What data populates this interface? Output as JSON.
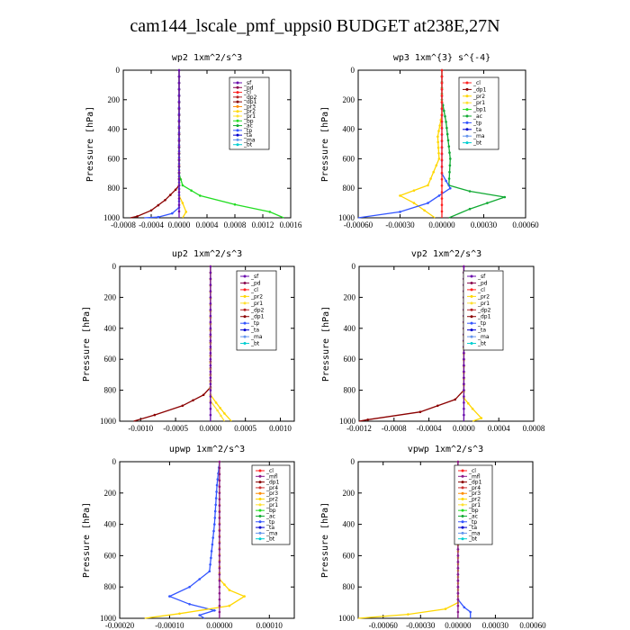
{
  "figure": {
    "title": "cam144_lscale_pmf_uppsi0  BUDGET at238E,27N"
  },
  "colors": {
    "_sf": "#6a0dad",
    "_pd": "#8b0a50",
    "_cl": "#ff2020",
    "_dp2": "#b22222",
    "_dp1": "#8b0000",
    "_pr3": "#ff8c00",
    "_pr2": "#ffd700",
    "_pr1": "#ffe030",
    "_bp": "#22dd22",
    "_bp1": "#22dd22",
    "_ac": "#11aa33",
    "_tp": "#3355ff",
    "_ta": "#0000cd",
    "_ma": "#6495ed",
    "_bt": "#00ced1",
    "_mfl": "#8b1a8b",
    "_pr4": "#cc3333"
  },
  "chart_data": [
    {
      "type": "line",
      "title": "wp2  1xm^2/s^3",
      "ylabel": "Pressure [hPa]",
      "ylim": [
        1000,
        0
      ],
      "xlim": [
        -0.0008,
        0.0016
      ],
      "xticks": [
        "-0.0008",
        "-0.0004",
        "0.0000",
        "0.0004",
        "0.0008",
        "0.0012",
        "0.0016"
      ],
      "xtickvals": [
        -0.0008,
        -0.0004,
        0,
        0.0004,
        0.0008,
        0.0012,
        0.0016
      ],
      "yticks": [
        0,
        200,
        400,
        600,
        800,
        1000
      ],
      "legend": [
        "_sf",
        "_pd",
        "_cl",
        "_dp2",
        "_dp1",
        "_pr3",
        "_pr2",
        "_pr1",
        "_bp",
        "_ac",
        "_tp",
        "_ta",
        "_ma",
        "_bt"
      ],
      "series": [
        {
          "name": "_bp",
          "points": [
            [
              0,
              0
            ],
            [
              0,
              700
            ],
            [
              5e-05,
              780
            ],
            [
              0.0003,
              850
            ],
            [
              0.0008,
              910
            ],
            [
              0.0013,
              960
            ],
            [
              0.0015,
              1000
            ]
          ]
        },
        {
          "name": "_dp1",
          "points": [
            [
              0,
              0
            ],
            [
              0,
              780
            ],
            [
              -5e-05,
              810
            ],
            [
              -0.0002,
              880
            ],
            [
              -0.0004,
              950
            ],
            [
              -0.0006,
              990
            ],
            [
              -0.0007,
              1000
            ]
          ]
        },
        {
          "name": "_pr2",
          "points": [
            [
              0,
              0
            ],
            [
              0,
              850
            ],
            [
              5e-05,
              900
            ],
            [
              0.0001,
              960
            ],
            [
              5e-05,
              1000
            ]
          ]
        },
        {
          "name": "_tp",
          "points": [
            [
              0,
              0
            ],
            [
              0,
              930
            ],
            [
              -0.0001,
              970
            ],
            [
              -0.0003,
              995
            ],
            [
              -0.0005,
              1000
            ]
          ]
        },
        {
          "name": "_sf",
          "points": [
            [
              0,
              0
            ],
            [
              0,
              1000
            ]
          ]
        }
      ]
    },
    {
      "type": "line",
      "title": "wp3  1xm^{3} s^{-4}",
      "ylabel": "Pressure [hPa]",
      "ylim": [
        1000,
        0
      ],
      "xlim": [
        -0.0006,
        0.0006
      ],
      "xticks": [
        "-0.00060",
        "-0.00030",
        "0.00000",
        "0.00030",
        "0.00060"
      ],
      "xtickvals": [
        -0.0006,
        -0.0003,
        0,
        0.0003,
        0.0006
      ],
      "yticks": [
        0,
        200,
        400,
        600,
        800,
        1000
      ],
      "legend": [
        "_cl",
        "_dp1",
        "_pr2",
        "_pr1",
        "_bp1",
        "_ac",
        "_tp",
        "_ta",
        "_ma",
        "_bt"
      ],
      "series": [
        {
          "name": "_ac",
          "points": [
            [
              0,
              0
            ],
            [
              0,
              200
            ],
            [
              3e-05,
              350
            ],
            [
              6e-05,
              600
            ],
            [
              5e-05,
              780
            ],
            [
              0.0002,
              820
            ],
            [
              0.00045,
              860
            ],
            [
              0.0002,
              940
            ],
            [
              5e-05,
              1000
            ]
          ]
        },
        {
          "name": "_pr2",
          "points": [
            [
              0,
              0
            ],
            [
              0,
              300
            ],
            [
              -3e-05,
              450
            ],
            [
              -2e-05,
              600
            ],
            [
              -0.0001,
              780
            ],
            [
              -0.0003,
              850
            ],
            [
              -0.0002,
              900
            ],
            [
              -5e-05,
              1000
            ]
          ]
        },
        {
          "name": "_tp",
          "points": [
            [
              0,
              0
            ],
            [
              0,
              700
            ],
            [
              6e-05,
              800
            ],
            [
              -0.0001,
              900
            ],
            [
              -0.0003,
              960
            ],
            [
              -0.0006,
              1000
            ]
          ]
        },
        {
          "name": "_cl",
          "points": [
            [
              0,
              0
            ],
            [
              0,
              1000
            ]
          ]
        }
      ]
    },
    {
      "type": "line",
      "title": "up2  1xm^2/s^3",
      "ylabel": "Pressure [hPa]",
      "ylim": [
        1000,
        0
      ],
      "xlim": [
        -0.0013,
        0.0012
      ],
      "xticks": [
        "-0.0010",
        "-0.0005",
        "0.0000",
        "0.0005",
        "0.0010"
      ],
      "xtickvals": [
        -0.001,
        -0.0005,
        0,
        0.0005,
        0.001
      ],
      "yticks": [
        0,
        200,
        400,
        600,
        800,
        1000
      ],
      "legend": [
        "_sf",
        "_pd",
        "_cl",
        "_pr2",
        "_pr1",
        "_dp2",
        "_dp1",
        "_tp",
        "_ta",
        "_ma",
        "_bt"
      ],
      "series": [
        {
          "name": "_dp1",
          "points": [
            [
              0,
              0
            ],
            [
              0,
              780
            ],
            [
              -0.0001,
              830
            ],
            [
              -0.0004,
              900
            ],
            [
              -0.0008,
              960
            ],
            [
              -0.0011,
              1000
            ]
          ]
        },
        {
          "name": "_pr2",
          "points": [
            [
              0,
              0
            ],
            [
              0,
              830
            ],
            [
              8e-05,
              880
            ],
            [
              0.0002,
              950
            ],
            [
              0.0003,
              1000
            ]
          ]
        },
        {
          "name": "_pr1",
          "points": [
            [
              0,
              0
            ],
            [
              0,
              870
            ],
            [
              0.0001,
              930
            ],
            [
              0.0002,
              1000
            ]
          ]
        },
        {
          "name": "_sf",
          "points": [
            [
              0,
              0
            ],
            [
              0,
              1000
            ]
          ]
        }
      ]
    },
    {
      "type": "line",
      "title": "vp2  1xm^2/s^3",
      "ylabel": "Pressure [hPa]",
      "ylim": [
        1000,
        0
      ],
      "xlim": [
        -0.0012,
        0.0008
      ],
      "xticks": [
        "-0.0012",
        "-0.0008",
        "-0.0004",
        "0.0000",
        "0.0004",
        "0.0008"
      ],
      "xtickvals": [
        -0.0012,
        -0.0008,
        -0.0004,
        0,
        0.0004,
        0.0008
      ],
      "yticks": [
        0,
        200,
        400,
        600,
        800,
        1000
      ],
      "legend": [
        "_sf",
        "_pd",
        "_cl",
        "_pr2",
        "_pr1",
        "_dp2",
        "_dp1",
        "_tp",
        "_ta",
        "_ma",
        "_bt"
      ],
      "series": [
        {
          "name": "_dp1",
          "points": [
            [
              0,
              0
            ],
            [
              0,
              800
            ],
            [
              -0.0001,
              860
            ],
            [
              -0.0005,
              940
            ],
            [
              -0.0011,
              990
            ],
            [
              -0.0012,
              1000
            ]
          ]
        },
        {
          "name": "_pr2",
          "points": [
            [
              0,
              0
            ],
            [
              0,
              850
            ],
            [
              0.0001,
              920
            ],
            [
              0.0002,
              980
            ],
            [
              0.0001,
              1000
            ]
          ]
        },
        {
          "name": "_sf",
          "points": [
            [
              0,
              0
            ],
            [
              0,
              1000
            ]
          ]
        }
      ]
    },
    {
      "type": "line",
      "title": "upwp  1xm^2/s^3",
      "ylabel": "Pressure [hPa]",
      "ylim": [
        1000,
        0
      ],
      "xlim": [
        -0.0002,
        0.00015
      ],
      "xticks": [
        "-0.00020",
        "-0.00010",
        "0.00000",
        "0.00010"
      ],
      "xtickvals": [
        -0.0002,
        -0.0001,
        0,
        0.0001
      ],
      "yticks": [
        0,
        200,
        400,
        600,
        800,
        1000
      ],
      "legend": [
        "_cl",
        "_mfl",
        "_dp1",
        "_pr4",
        "_pr3",
        "_pr2",
        "_pr1",
        "_bp",
        "_ac",
        "_tp",
        "_ta",
        "_ma",
        "_bt"
      ],
      "series": [
        {
          "name": "_tp",
          "points": [
            [
              0,
              0
            ],
            [
              -5e-06,
              150
            ],
            [
              -1e-05,
              400
            ],
            [
              -2e-05,
              700
            ],
            [
              -6e-05,
              800
            ],
            [
              -0.0001,
              860
            ],
            [
              -6e-05,
              910
            ],
            [
              -1e-05,
              950
            ],
            [
              -4e-05,
              980
            ],
            [
              -3e-05,
              1000
            ]
          ]
        },
        {
          "name": "_pr2",
          "points": [
            [
              0,
              0
            ],
            [
              0,
              750
            ],
            [
              2e-05,
              820
            ],
            [
              5e-05,
              860
            ],
            [
              2e-05,
              920
            ],
            [
              -8e-05,
              970
            ],
            [
              -0.00015,
              1000
            ]
          ]
        },
        {
          "name": "_mfl",
          "points": [
            [
              0,
              0
            ],
            [
              0,
              1000
            ]
          ]
        }
      ]
    },
    {
      "type": "line",
      "title": "vpwp  1xm^2/s^3",
      "ylabel": "Pressure [hPa]",
      "ylim": [
        1000,
        0
      ],
      "xlim": [
        -0.0008,
        0.0006
      ],
      "xticks": [
        "-0.00060",
        "-0.00030",
        "0.00000",
        "0.00030",
        "0.00060"
      ],
      "xtickvals": [
        -0.0006,
        -0.0003,
        0,
        0.0003,
        0.0006
      ],
      "yticks": [
        0,
        200,
        400,
        600,
        800,
        1000
      ],
      "legend": [
        "_cl",
        "_mfl",
        "_dp1",
        "_pr4",
        "_pr3",
        "_pr2",
        "_pr1",
        "_bp",
        "_ac",
        "_tp",
        "_ta",
        "_ma",
        "_bt"
      ],
      "series": [
        {
          "name": "_tp",
          "points": [
            [
              0,
              0
            ],
            [
              0,
              880
            ],
            [
              5e-05,
              930
            ],
            [
              0.0001,
              960
            ],
            [
              0.0001,
              1000
            ]
          ]
        },
        {
          "name": "_pr2",
          "points": [
            [
              0,
              0
            ],
            [
              0,
              900
            ],
            [
              -0.0001,
              940
            ],
            [
              -0.0004,
              975
            ],
            [
              -0.0008,
              1000
            ]
          ]
        },
        {
          "name": "_mfl",
          "points": [
            [
              0,
              0
            ],
            [
              0,
              1000
            ]
          ]
        }
      ]
    }
  ]
}
